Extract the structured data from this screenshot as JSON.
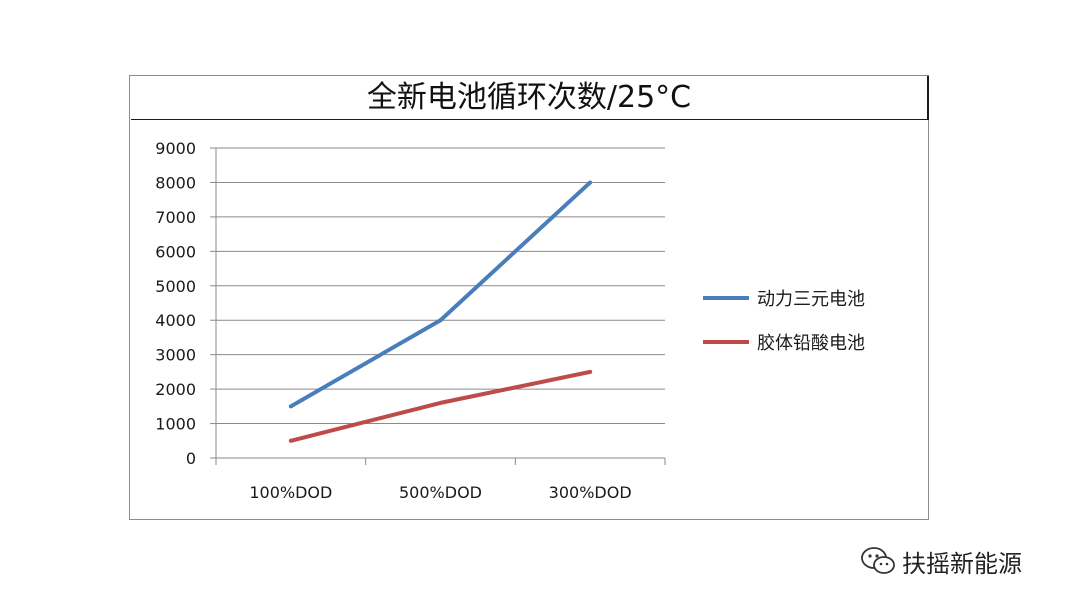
{
  "chart_data": {
    "type": "line",
    "title": "全新电池循环次数/25°C",
    "categories": [
      "100%DOD",
      "500%DOD",
      "300%DOD"
    ],
    "series": [
      {
        "name": "动力三元电池",
        "color": "#4a7ebb",
        "values": [
          1500,
          4000,
          8000
        ]
      },
      {
        "name": "胶体铅酸电池",
        "color": "#be4b48",
        "values": [
          500,
          1600,
          2500
        ]
      }
    ],
    "xlabel": "",
    "ylabel": "",
    "ylim": [
      0,
      9000
    ],
    "yticks": [
      0,
      1000,
      2000,
      3000,
      4000,
      5000,
      6000,
      7000,
      8000,
      9000
    ],
    "grid": true,
    "legend_position": "right"
  },
  "watermark": {
    "icon": "wechat-icon",
    "text": "扶摇新能源"
  }
}
